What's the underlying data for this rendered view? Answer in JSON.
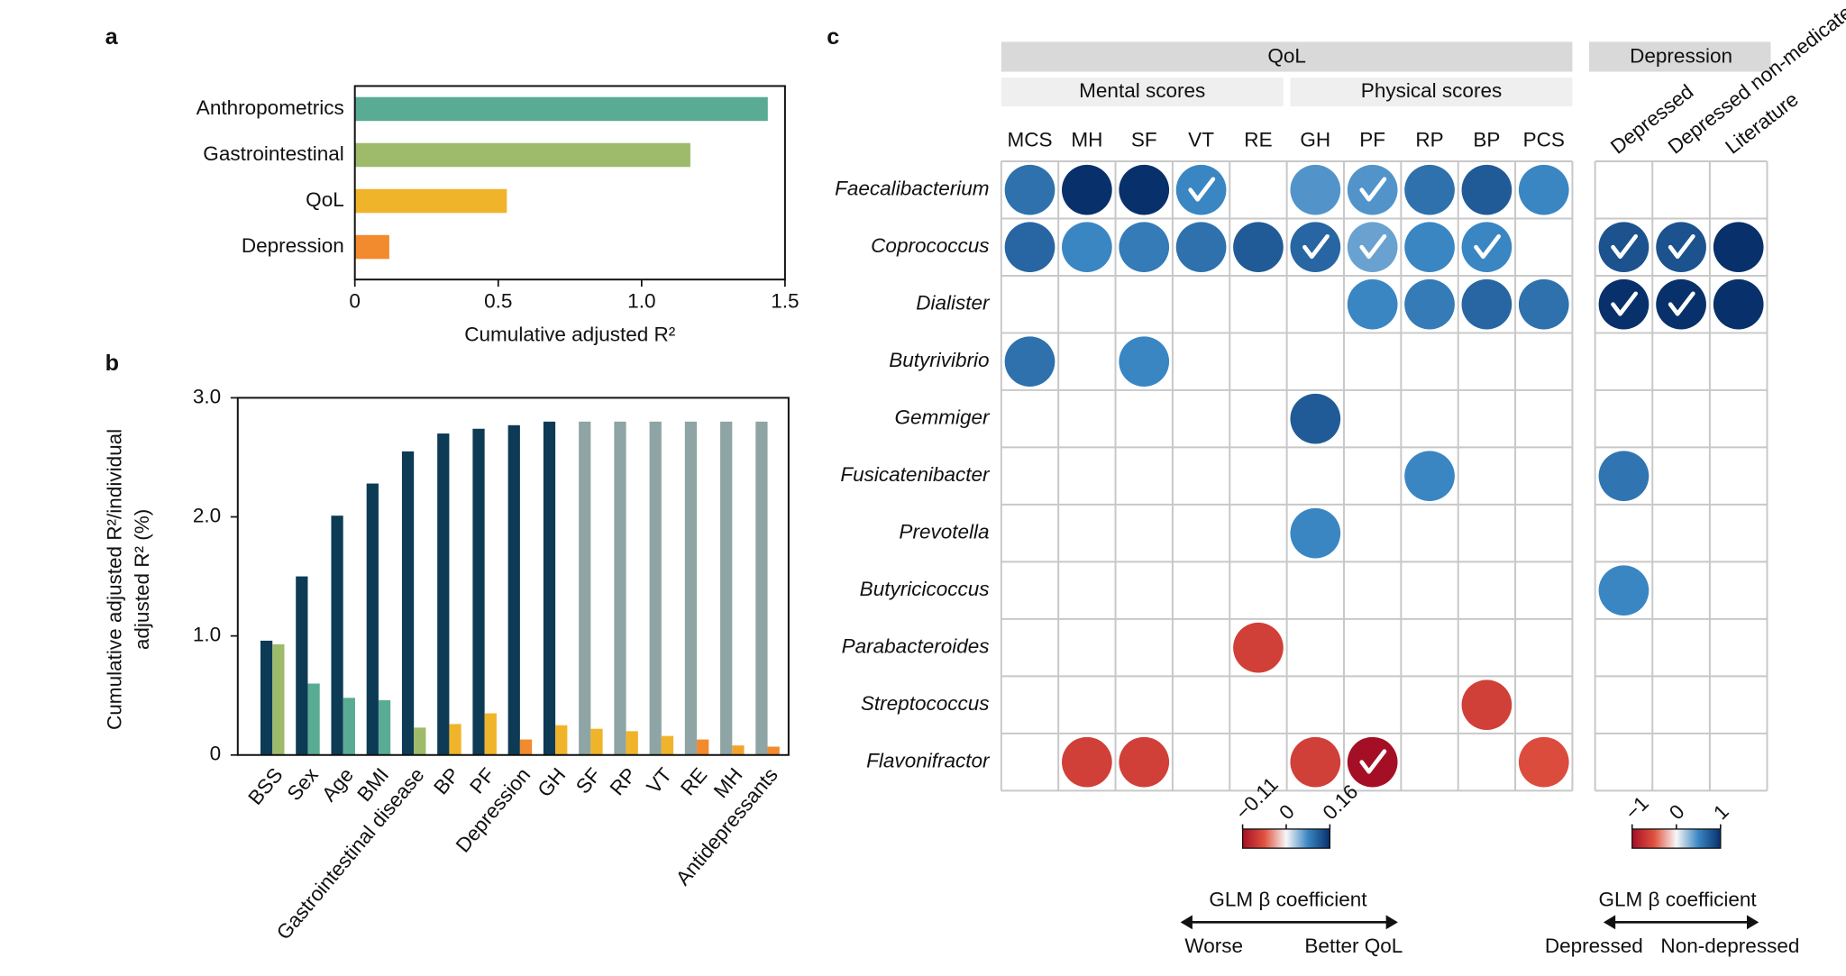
{
  "chart_data": [
    {
      "type": "hbar",
      "panel": "a",
      "categories": [
        "Anthropometrics",
        "Gastrointestinal",
        "QoL",
        "Depression"
      ],
      "values": [
        1.44,
        1.17,
        0.53,
        0.12
      ],
      "colors": [
        "#5aab94",
        "#9dbb6b",
        "#f0b42b",
        "#f28a2e"
      ],
      "x_label": "Cumulative adjusted R²",
      "xlim": [
        0,
        1.5
      ],
      "xticks": [
        0,
        {
          "value": 0.5,
          "label": "0.5"
        },
        {
          "value": 1,
          "label": "1.0"
        },
        1.5
      ]
    },
    {
      "type": "grouped-bar",
      "panel": "b",
      "categories": [
        "BSS",
        "Sex",
        "Age",
        "BMI",
        "Gastrointestinal disease",
        "BP",
        "PF",
        "Depression",
        "GH",
        "SF",
        "RP",
        "VT",
        "RE",
        "MH",
        "Antidepressants"
      ],
      "y_label": [
        "Cumulative adjusted R²/individual",
        "adjusted R² (%)"
      ],
      "ylim": [
        0,
        3
      ],
      "yticks": [
        0,
        {
          "value": 1,
          "label": "1.0"
        },
        {
          "value": 2,
          "label": "2.0"
        },
        {
          "value": 3,
          "label": "3.0"
        }
      ],
      "series": [
        {
          "values": [
            0.96,
            1.5,
            2.01,
            2.28,
            2.55,
            2.7,
            2.74,
            2.77,
            2.8,
            2.8,
            2.8,
            2.8,
            2.8,
            2.8,
            2.8
          ],
          "colors": [
            "#0d3b55",
            "#0d3b55",
            "#0d3b55",
            "#0d3b55",
            "#0d3b55",
            "#0d3b55",
            "#0d3b55",
            "#0d3b55",
            "#0d3b55",
            "#8fa4a4",
            "#8fa4a4",
            "#8fa4a4",
            "#8fa4a4",
            "#8fa4a4",
            "#8fa4a4"
          ]
        },
        {
          "values": [
            0.93,
            0.6,
            0.48,
            0.46,
            0.23,
            0.26,
            0.35,
            0.13,
            0.25,
            0.22,
            0.2,
            0.16,
            0.13,
            0.08,
            0.07
          ],
          "colors": [
            "#9dbb6b",
            "#5aab94",
            "#5aab94",
            "#5aab94",
            "#9dbb6b",
            "#f0b42b",
            "#f0b42b",
            "#f28a2e",
            "#f0b42b",
            "#f0b42b",
            "#f0b42b",
            "#f0b42b",
            "#f28a2e",
            "#f3a32c",
            "#f28a2e"
          ]
        }
      ]
    },
    {
      "type": "dot-matrix",
      "panel": "c",
      "rows": [
        "Faecalibacterium",
        "Coprococcus",
        "Dialister",
        "Butyrivibrio",
        "Gemmiger",
        "Fusicatenibacter",
        "Prevotella",
        "Butyricicoccus",
        "Parabacteroides",
        "Streptococcus",
        "Flavonifractor"
      ],
      "series": [
        {
          "name": "QoL",
          "subgroups": [
            "Mental scores",
            "Physical scores"
          ],
          "columns": [
            "MCS",
            "MH",
            "SF",
            "VT",
            "RE",
            "GH",
            "PF",
            "RP",
            "BP",
            "PCS"
          ],
          "values": [
            [
              0.1,
              0.16,
              0.16,
              0.08,
              null,
              0.07,
              0.07,
              0.1,
              0.12,
              0.08
            ],
            [
              0.11,
              0.08,
              0.09,
              0.1,
              0.12,
              0.11,
              0.06,
              0.08,
              0.08,
              null
            ],
            [
              null,
              null,
              null,
              null,
              null,
              null,
              0.08,
              0.09,
              0.11,
              0.1
            ],
            [
              0.1,
              null,
              0.08,
              null,
              null,
              null,
              null,
              null,
              null,
              null
            ],
            [
              null,
              null,
              null,
              null,
              null,
              0.12,
              null,
              null,
              null,
              null
            ],
            [
              null,
              null,
              null,
              null,
              null,
              null,
              null,
              0.08,
              null,
              null
            ],
            [
              null,
              null,
              null,
              null,
              null,
              0.08,
              null,
              null,
              null,
              null
            ],
            [
              null,
              null,
              null,
              null,
              null,
              null,
              null,
              null,
              null,
              null
            ],
            [
              null,
              null,
              null,
              null,
              -0.07,
              null,
              null,
              null,
              null,
              null
            ],
            [
              null,
              null,
              null,
              null,
              null,
              null,
              null,
              null,
              -0.07,
              null
            ],
            [
              null,
              -0.07,
              -0.07,
              null,
              null,
              -0.07,
              -0.11,
              null,
              null,
              -0.06
            ]
          ],
          "significant": [
            [
              false,
              false,
              false,
              true,
              false,
              false,
              true,
              false,
              false,
              false
            ],
            [
              false,
              false,
              false,
              false,
              false,
              true,
              true,
              false,
              true,
              false
            ],
            [
              false,
              false,
              false,
              false,
              false,
              false,
              false,
              false,
              false,
              false
            ],
            [
              false,
              false,
              false,
              false,
              false,
              false,
              false,
              false,
              false,
              false
            ],
            [
              false,
              false,
              false,
              false,
              false,
              false,
              false,
              false,
              false,
              false
            ],
            [
              false,
              false,
              false,
              false,
              false,
              false,
              false,
              false,
              false,
              false
            ],
            [
              false,
              false,
              false,
              false,
              false,
              false,
              false,
              false,
              false,
              false
            ],
            [
              false,
              false,
              false,
              false,
              false,
              false,
              false,
              false,
              false,
              false
            ],
            [
              false,
              false,
              false,
              false,
              false,
              false,
              false,
              false,
              false,
              false
            ],
            [
              false,
              false,
              false,
              false,
              false,
              false,
              false,
              false,
              false,
              false
            ],
            [
              false,
              false,
              false,
              false,
              false,
              false,
              true,
              false,
              false,
              false
            ]
          ],
          "clim": [
            -0.11,
            0.16
          ],
          "cticks": [
            {
              "value": -0.11,
              "label": "−0.11"
            },
            0,
            0.16
          ],
          "colormap": [
            "#a50f26",
            "#e0523f",
            "#f7f7f7",
            "#3a86c3",
            "#08306b"
          ],
          "colorbar_label": "GLM β coefficient",
          "direction_labels": [
            "Worse",
            "Better QoL"
          ]
        },
        {
          "name": "Depression",
          "columns": [
            "Depressed",
            "Depressed non-medicated",
            "Literature"
          ],
          "values": [
            [
              null,
              null,
              null
            ],
            [
              0.8,
              0.8,
              1
            ],
            [
              1,
              1,
              1
            ],
            [
              null,
              null,
              null
            ],
            [
              null,
              null,
              null
            ],
            [
              0.6,
              null,
              null
            ],
            [
              null,
              null,
              null
            ],
            [
              0.5,
              null,
              null
            ],
            [
              null,
              null,
              null
            ],
            [
              null,
              null,
              null
            ],
            [
              null,
              null,
              null
            ]
          ],
          "significant": [
            [
              false,
              false,
              false
            ],
            [
              true,
              true,
              false
            ],
            [
              true,
              true,
              false
            ],
            [
              false,
              false,
              false
            ],
            [
              false,
              false,
              false
            ],
            [
              false,
              false,
              false
            ],
            [
              false,
              false,
              false
            ],
            [
              false,
              false,
              false
            ],
            [
              false,
              false,
              false
            ],
            [
              false,
              false,
              false
            ],
            [
              false,
              false,
              false
            ]
          ],
          "clim": [
            -1,
            1
          ],
          "cticks": [
            {
              "value": -1,
              "label": "−1"
            },
            0,
            1
          ],
          "colormap": [
            "#a50f26",
            "#e0523f",
            "#f7f7f7",
            "#3a86c3",
            "#08306b"
          ],
          "colorbar_label": "GLM β coefficient",
          "direction_labels": [
            "Depressed",
            "Non-depressed"
          ]
        }
      ]
    }
  ]
}
